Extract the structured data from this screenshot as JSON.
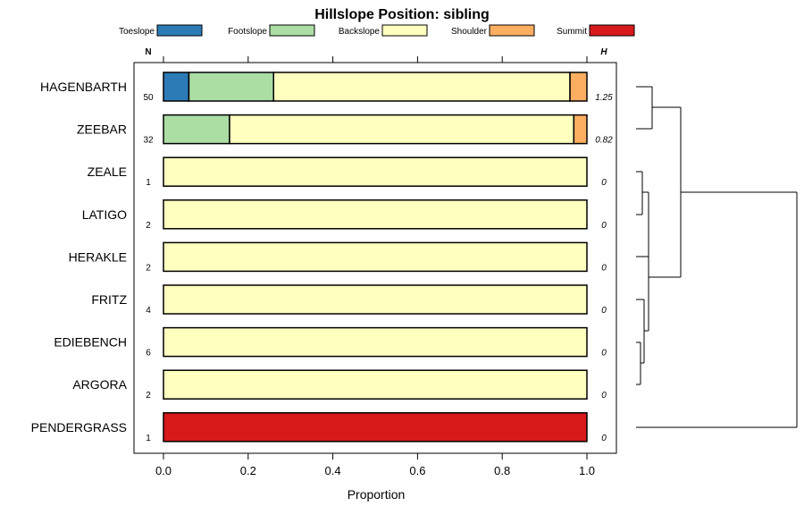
{
  "chart_data": {
    "type": "bar",
    "stacked": true,
    "orientation": "horizontal",
    "title": "Hillslope Position: sibling",
    "xlabel": "Proportion",
    "xlim": [
      0,
      1
    ],
    "xticks": [
      "0.0",
      "0.2",
      "0.4",
      "0.6",
      "0.8",
      "1.0"
    ],
    "n_header": "N",
    "h_header": "H",
    "legend_position": "top",
    "legend": [
      {
        "name": "Toeslope",
        "color": "#2c7bb6"
      },
      {
        "name": "Footslope",
        "color": "#abdda4"
      },
      {
        "name": "Backslope",
        "color": "#ffffbf"
      },
      {
        "name": "Shoulder",
        "color": "#fdae61"
      },
      {
        "name": "Summit",
        "color": "#d7191c"
      }
    ],
    "categories": [
      "HAGENBARTH",
      "ZEEBAR",
      "ZEALE",
      "LATIGO",
      "HERAKLE",
      "FRITZ",
      "EDIEBENCH",
      "ARGORA",
      "PENDERGRASS"
    ],
    "n": [
      "50",
      "32",
      "1",
      "2",
      "2",
      "4",
      "6",
      "2",
      "1"
    ],
    "h": [
      "1.25",
      "0.82",
      "0",
      "0",
      "0",
      "0",
      "0",
      "0",
      "0"
    ],
    "series": [
      {
        "name": "Toeslope",
        "values": [
          0.06,
          0,
          0,
          0,
          0,
          0,
          0,
          0,
          0
        ]
      },
      {
        "name": "Footslope",
        "values": [
          0.2,
          0.156,
          0,
          0,
          0,
          0,
          0,
          0,
          0
        ]
      },
      {
        "name": "Backslope",
        "values": [
          0.7,
          0.813,
          1,
          1,
          1,
          1,
          1,
          1,
          0
        ]
      },
      {
        "name": "Shoulder",
        "values": [
          0.04,
          0.031,
          0,
          0,
          0,
          0,
          0,
          0,
          0
        ]
      },
      {
        "name": "Summit",
        "values": [
          0,
          0,
          0,
          0,
          0,
          0,
          0,
          0,
          1
        ]
      }
    ]
  }
}
